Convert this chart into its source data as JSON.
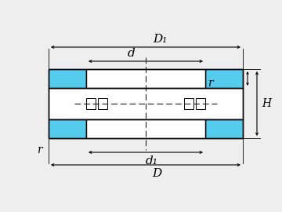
{
  "bg_color": "#eeeeee",
  "line_color": "#000000",
  "bearing_color": "#55ccee",
  "fig_width": 3.6,
  "fig_height": 2.7,
  "dpi": 100,
  "labels": {
    "D1": "D₁",
    "d": "d",
    "r_top": "r",
    "r_bot": "r",
    "d1": "d₁",
    "D": "D",
    "H": "H"
  },
  "font_size": 10
}
